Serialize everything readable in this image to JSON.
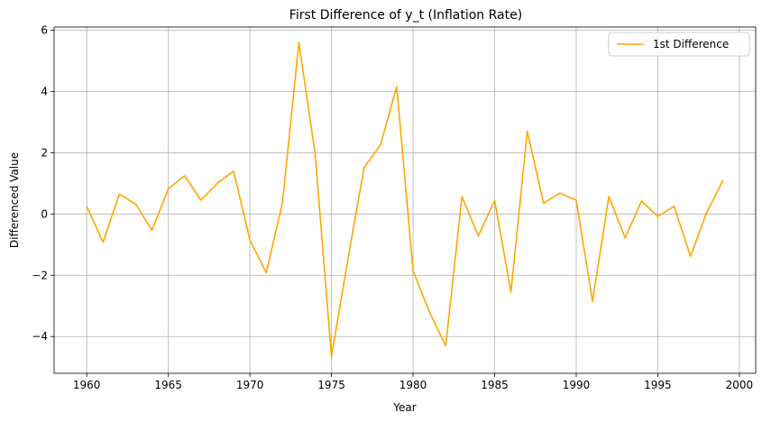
{
  "chart_data": {
    "type": "line",
    "title": "First Difference of y_t (Inflation Rate)",
    "xlabel": "Year",
    "ylabel": "Differenced Value",
    "xlim": [
      1958,
      2001
    ],
    "ylim": [
      -5.2,
      6.1
    ],
    "xticks": [
      1960,
      1965,
      1970,
      1975,
      1980,
      1985,
      1990,
      1995,
      2000
    ],
    "yticks": [
      -4,
      -2,
      0,
      2,
      4,
      6
    ],
    "xtick_labels": [
      "1960",
      "1965",
      "1970",
      "1975",
      "1980",
      "1985",
      "1990",
      "1995",
      "2000"
    ],
    "ytick_labels": [
      "−4",
      "−2",
      "0",
      "2",
      "4",
      "6"
    ],
    "grid": true,
    "legend_position": "top-right",
    "series": [
      {
        "name": "1st Difference",
        "color": "#ffa500",
        "x": [
          1960,
          1961,
          1962,
          1963,
          1964,
          1965,
          1966,
          1967,
          1968,
          1969,
          1970,
          1971,
          1972,
          1973,
          1974,
          1975,
          1976,
          1977,
          1978,
          1979,
          1980,
          1981,
          1982,
          1983,
          1984,
          1985,
          1986,
          1987,
          1988,
          1989,
          1990,
          1991,
          1992,
          1993,
          1994,
          1995,
          1996,
          1997,
          1998,
          1999
        ],
        "y": [
          0.25,
          -0.92,
          0.65,
          0.32,
          -0.53,
          0.82,
          1.25,
          0.45,
          1.0,
          1.4,
          -0.85,
          -1.92,
          0.38,
          5.6,
          1.95,
          -4.65,
          -1.5,
          1.52,
          2.25,
          4.15,
          -1.85,
          -3.2,
          -4.3,
          0.57,
          -0.72,
          0.44,
          -2.55,
          2.7,
          0.35,
          0.68,
          0.45,
          -2.85,
          0.57,
          -0.78,
          0.42,
          -0.08,
          0.25,
          -1.38,
          0.05,
          1.1
        ]
      }
    ]
  }
}
